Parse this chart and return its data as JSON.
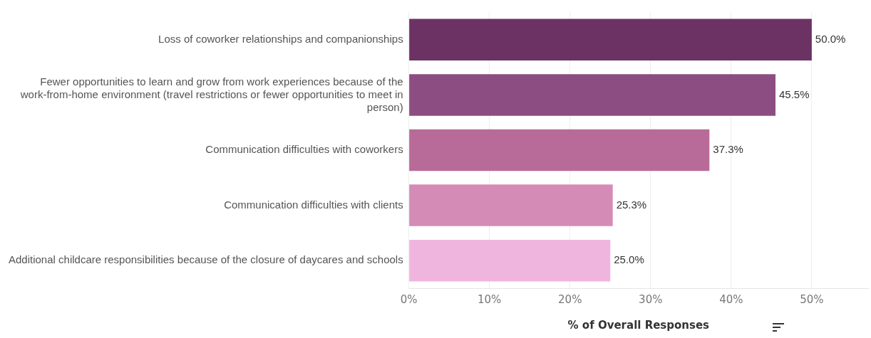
{
  "chart_data": {
    "type": "bar",
    "orientation": "horizontal",
    "categories": [
      "Loss of coworker relationships and companionships",
      "Fewer opportunities to learn and grow from work experiences because of the work-from-home environment (travel restrictions or fewer opportunities to meet in person)",
      "Communication difficulties with coworkers",
      "Communication difficulties with clients",
      "Additional childcare responsibilities because of the closure of daycares and schools"
    ],
    "values": [
      50.0,
      45.5,
      37.3,
      25.3,
      25.0
    ],
    "colors": [
      "#6d3264",
      "#8c4e82",
      "#b86b98",
      "#d48bb6",
      "#f0b5de"
    ],
    "value_labels": [
      "50.0%",
      "45.5%",
      "37.3%",
      "25.3%",
      "25.0%"
    ],
    "xlabel": "% of Overall Responses",
    "xlim": [
      0,
      57
    ],
    "xticks": [
      {
        "value": 0,
        "label": "0%"
      },
      {
        "value": 10,
        "label": "10%"
      },
      {
        "value": 20,
        "label": "20%"
      },
      {
        "value": 30,
        "label": "30%"
      },
      {
        "value": 40,
        "label": "40%"
      },
      {
        "value": 50,
        "label": "50%"
      }
    ],
    "grid": "x",
    "legend": false
  }
}
